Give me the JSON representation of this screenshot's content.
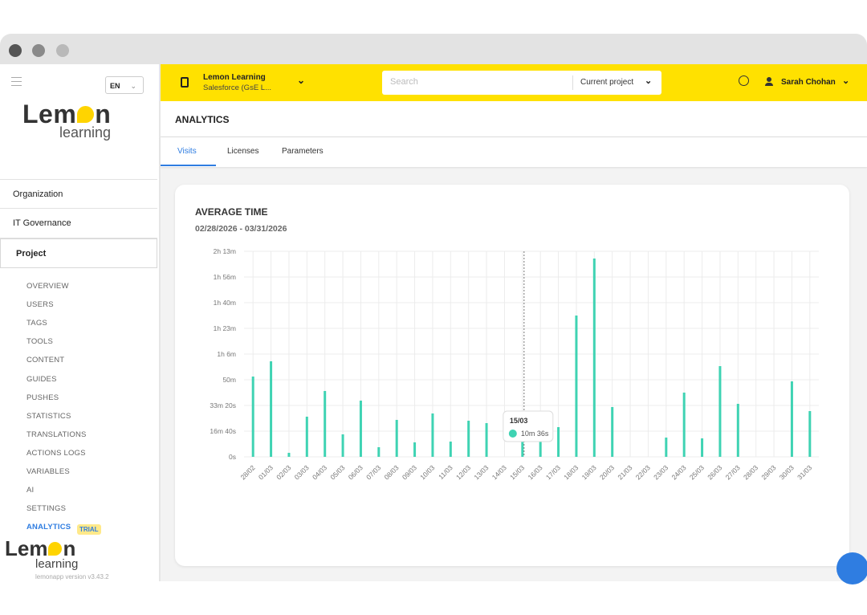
{
  "sidebar": {
    "language": "EN",
    "logo": {
      "before": "Lem",
      "after": "n",
      "tagline": "learning"
    },
    "nav": [
      "Organization",
      "IT Governance",
      "Project"
    ],
    "subnav": [
      "OVERVIEW",
      "USERS",
      "TAGS",
      "TOOLS",
      "CONTENT",
      "GUIDES",
      "PUSHES",
      "STATISTICS",
      "TRANSLATIONS",
      "ACTIONS LOGS",
      "VARIABLES",
      "AI",
      "SETTINGS",
      "ANALYTICS"
    ],
    "badge": "TRIAL",
    "version": "lemonapp version v3.43.2"
  },
  "header": {
    "workspace": "Lemon Learning",
    "workspace_sub": "Salesforce (GsE L...",
    "search_placeholder": "Search",
    "scope": "Current project",
    "user": "Sarah Chohan"
  },
  "page": {
    "title": "ANALYTICS",
    "tabs": [
      "Visits",
      "Licenses",
      "Parameters"
    ]
  },
  "card": {
    "title": "AVERAGE TIME",
    "date_range": "02/28/2026 - 03/31/2026"
  },
  "chart_data": {
    "type": "bar",
    "categories": [
      "28/02",
      "01/03",
      "02/03",
      "03/03",
      "04/03",
      "05/03",
      "06/03",
      "07/03",
      "08/03",
      "09/03",
      "10/03",
      "11/03",
      "12/03",
      "13/03",
      "14/03",
      "15/03",
      "16/03",
      "17/03",
      "18/03",
      "19/03",
      "20/03",
      "21/03",
      "22/03",
      "23/03",
      "24/03",
      "25/03",
      "26/03",
      "27/03",
      "28/03",
      "29/03",
      "30/03",
      "31/03"
    ],
    "values": [
      3125,
      3719,
      156,
      1563,
      2563,
      875,
      2188,
      375,
      1438,
      563,
      1688,
      594,
      1406,
      1313,
      0,
      636,
      600,
      1156,
      5500,
      7719,
      1938,
      0,
      0,
      750,
      2500,
      719,
      3531,
      2063,
      0,
      0,
      2938,
      1781
    ],
    "value_labels": [
      null,
      null,
      null,
      null,
      null,
      null,
      null,
      null,
      null,
      null,
      null,
      null,
      null,
      null,
      null,
      "10m 36s",
      null,
      null,
      null,
      null,
      null,
      null,
      null,
      null,
      null,
      null,
      null,
      null,
      null,
      null,
      null,
      null
    ],
    "color": "#3fd3b3",
    "ylim": [
      0,
      8000
    ],
    "yticks": [
      {
        "value": 0,
        "label": "0s"
      },
      {
        "value": 1000,
        "label": "16m 40s"
      },
      {
        "value": 2000,
        "label": "33m 20s"
      },
      {
        "value": 3000,
        "label": "50m"
      },
      {
        "value": 4000,
        "label": "1h 6m"
      },
      {
        "value": 5000,
        "label": "1h 23m"
      },
      {
        "value": 6000,
        "label": "1h 40m"
      },
      {
        "value": 7000,
        "label": "1h 56m"
      },
      {
        "value": 8000,
        "label": "2h 13m"
      }
    ],
    "grid": true
  }
}
